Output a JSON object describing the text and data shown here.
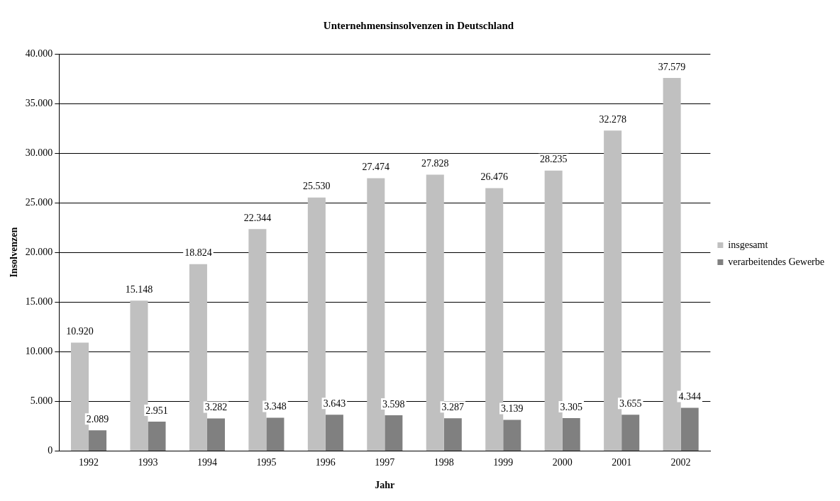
{
  "chart_data": {
    "type": "bar",
    "title": "Unternehmensinsolvenzen in Deutschland",
    "xlabel": "Jahr",
    "ylabel": "Insolvenzen",
    "categories": [
      "1992",
      "1993",
      "1994",
      "1995",
      "1996",
      "1997",
      "1998",
      "1999",
      "2000",
      "2001",
      "2002"
    ],
    "series": [
      {
        "name": "insgesamt",
        "color": "#c0c0c0",
        "values": [
          10920,
          15148,
          18824,
          22344,
          25530,
          27474,
          27828,
          26476,
          28235,
          32278,
          37579
        ],
        "value_labels": [
          "10.920",
          "15.148",
          "18.824",
          "22.344",
          "25.530",
          "27.474",
          "27.828",
          "26.476",
          "28.235",
          "32.278",
          "37.579"
        ]
      },
      {
        "name": "verarbeitendes Gewerbe",
        "color": "#808080",
        "values": [
          2089,
          2951,
          3282,
          3348,
          3643,
          3598,
          3287,
          3139,
          3305,
          3655,
          4344
        ],
        "value_labels": [
          "2.089",
          "2.951",
          "3.282",
          "3.348",
          "3.643",
          "3.598",
          "3.287",
          "3.139",
          "3.305",
          "3.655",
          "4.344"
        ]
      }
    ],
    "ylim": [
      0,
      40000
    ],
    "yticks": [
      {
        "value": 0,
        "label": "0"
      },
      {
        "value": 5000,
        "label": "5.000"
      },
      {
        "value": 10000,
        "label": "10.000"
      },
      {
        "value": 15000,
        "label": "15.000"
      },
      {
        "value": 20000,
        "label": "20.000"
      },
      {
        "value": 25000,
        "label": "25.000"
      },
      {
        "value": 30000,
        "label": "30.000"
      },
      {
        "value": 35000,
        "label": "35.000"
      },
      {
        "value": 40000,
        "label": "40.000"
      }
    ],
    "grid": "y",
    "legend": "right"
  }
}
